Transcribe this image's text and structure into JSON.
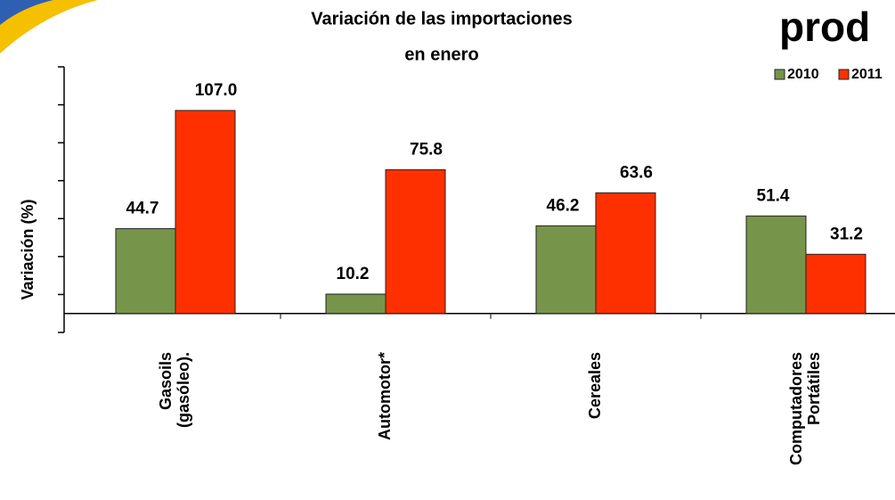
{
  "chart_data": {
    "type": "bar",
    "title": [
      "Variación de las importaciones",
      "en enero"
    ],
    "header_text": "prod",
    "y_label": "Variación (%)",
    "categories": [
      "Gasoils (gasóleo).",
      "Automotor*",
      "Cereales",
      "Computadores Portátiles"
    ],
    "series": [
      {
        "name": "2010",
        "color": "#76954a",
        "values": [
          44.7,
          10.2,
          46.2,
          51.4
        ],
        "value_labels": [
          "44.7",
          "10.2",
          "46.2",
          "51.4"
        ]
      },
      {
        "name": "2011",
        "color": "#ff3000",
        "values": [
          107.0,
          75.8,
          63.6,
          31.2
        ],
        "value_labels": [
          "107.0",
          "75.8",
          "63.6",
          "31.2"
        ]
      }
    ],
    "ylim": [
      -10,
      130
    ],
    "yticks": [
      -10,
      10,
      30,
      50,
      70,
      90,
      110,
      130
    ],
    "legend": "top-right"
  }
}
